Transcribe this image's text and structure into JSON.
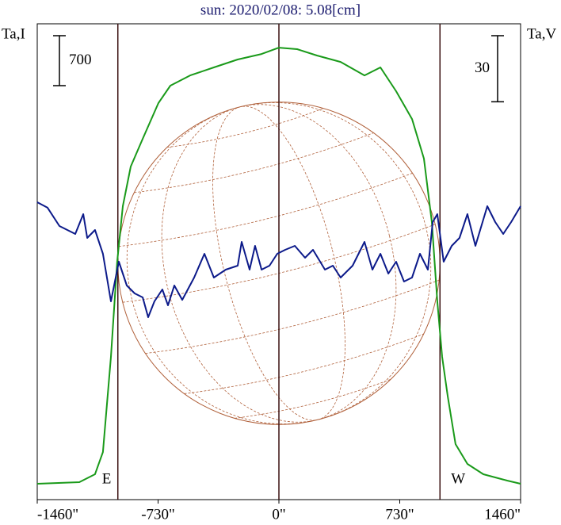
{
  "chart_data": {
    "type": "line",
    "title": "sun: 2020/02/08: 5.08[cm]",
    "y_label": "Ta,I",
    "y2_label": "Ta,V",
    "xlim": [
      -1460,
      1460
    ],
    "xticks": [
      {
        "value": -1460,
        "label": "-1460\""
      },
      {
        "value": -730,
        "label": "-730\""
      },
      {
        "value": 0,
        "label": "0\""
      },
      {
        "value": 730,
        "label": "730\""
      },
      {
        "value": 1460,
        "label": "1460\""
      }
    ],
    "ylim": [
      0,
      6667
    ],
    "y2lim": [
      -108,
      108
    ],
    "scale_bars": [
      {
        "value": 700,
        "axis": "y"
      },
      {
        "value": 30,
        "axis": "y2"
      }
    ],
    "limbs": {
      "values": [
        -973,
        973
      ],
      "labels": [
        "E",
        "W"
      ]
    },
    "series": [
      {
        "color": "#1a9a1a",
        "axis": "y",
        "x": [
          -1460,
          -1206,
          -1111,
          -1063,
          -1015,
          -977,
          -943,
          -895,
          -823,
          -728,
          -656,
          -536,
          -393,
          -249,
          -105,
          0,
          110,
          230,
          373,
          517,
          613,
          708,
          804,
          876,
          924,
          957,
          986,
          1020,
          1067,
          1139,
          1235,
          1379,
          1460
        ],
        "values": [
          222,
          244,
          356,
          667,
          2000,
          3333,
          4111,
          4667,
          5056,
          5556,
          5800,
          5944,
          6056,
          6167,
          6244,
          6333,
          6311,
          6222,
          6133,
          5944,
          6056,
          5722,
          5333,
          4778,
          3889,
          2778,
          2000,
          1444,
          778,
          500,
          356,
          267,
          222
        ]
      },
      {
        "color": "#0c1a8a",
        "axis": "y2",
        "x": [
          -1460,
          -1398,
          -1326,
          -1278,
          -1230,
          -1182,
          -1158,
          -1111,
          -1063,
          -1015,
          -967,
          -919,
          -871,
          -823,
          -790,
          -752,
          -704,
          -670,
          -632,
          -584,
          -512,
          -450,
          -393,
          -321,
          -249,
          -225,
          -177,
          -144,
          -105,
          -57,
          -10,
          38,
          96,
          158,
          206,
          278,
          326,
          373,
          445,
          517,
          565,
          613,
          661,
          708,
          756,
          804,
          852,
          900,
          929,
          957,
          995,
          1044,
          1091,
          1139,
          1187,
          1259,
          1307,
          1355,
          1403,
          1460
        ],
        "values": [
          27,
          24.5,
          16.2,
          14.4,
          12.6,
          21.6,
          10.8,
          14.4,
          3.6,
          -18,
          0,
          -10.8,
          -14.4,
          -16.2,
          -25.2,
          -18,
          -12.6,
          -19.8,
          -10.8,
          -17.3,
          -7.2,
          3.6,
          -7.2,
          -3.6,
          -1.8,
          9,
          -3.6,
          7.2,
          -3.6,
          -1.8,
          3.6,
          5.4,
          7.2,
          1.8,
          5.4,
          -3.6,
          -1.8,
          -7.2,
          -1.8,
          9,
          -3.6,
          3.6,
          -5.4,
          0,
          -9,
          -7.2,
          3.6,
          -3.6,
          18,
          21.6,
          0,
          7.2,
          10.8,
          21.6,
          7.2,
          25.2,
          18,
          12.6,
          18,
          25.2
        ]
      }
    ]
  }
}
